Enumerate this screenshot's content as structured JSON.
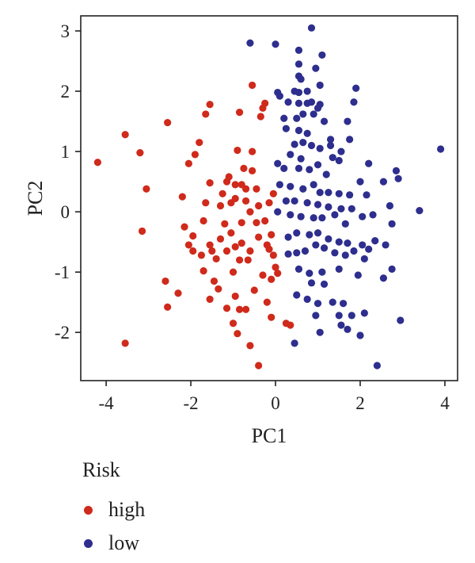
{
  "chart_data": {
    "type": "scatter",
    "xlabel": "PC1",
    "ylabel": "PC2",
    "xlim": [
      -4.6,
      4.3
    ],
    "ylim": [
      -2.8,
      3.25
    ],
    "x_ticks": [
      "-4",
      "-2",
      "0",
      "2",
      "4"
    ],
    "y_ticks": [
      "-2",
      "-1",
      "0",
      "1",
      "2",
      "3"
    ],
    "grid": false,
    "legend": {
      "title": "Risk",
      "placement": "bottom-left"
    },
    "series": [
      {
        "name": "high",
        "color": "#cf2a1b",
        "points": [
          [
            -4.2,
            0.82
          ],
          [
            -3.55,
            1.28
          ],
          [
            -3.2,
            0.98
          ],
          [
            -3.05,
            0.38
          ],
          [
            -3.15,
            -0.32
          ],
          [
            -3.55,
            -2.18
          ],
          [
            -2.55,
            1.48
          ],
          [
            -2.6,
            -1.15
          ],
          [
            -2.55,
            -1.58
          ],
          [
            -2.3,
            -1.35
          ],
          [
            -2.15,
            -0.25
          ],
          [
            -2.2,
            0.25
          ],
          [
            -2.05,
            0.8
          ],
          [
            -1.9,
            0.95
          ],
          [
            -1.95,
            -0.4
          ],
          [
            -2.05,
            -0.55
          ],
          [
            -1.95,
            -0.65
          ],
          [
            -1.75,
            -0.72
          ],
          [
            -1.8,
            1.15
          ],
          [
            -1.65,
            1.62
          ],
          [
            -1.55,
            1.78
          ],
          [
            -1.55,
            0.48
          ],
          [
            -1.65,
            0.15
          ],
          [
            -1.7,
            -0.15
          ],
          [
            -1.55,
            -0.55
          ],
          [
            -1.5,
            -0.65
          ],
          [
            -1.7,
            -0.98
          ],
          [
            -1.45,
            -1.15
          ],
          [
            -1.55,
            -1.45
          ],
          [
            -1.35,
            -1.28
          ],
          [
            -1.2,
            -0.2
          ],
          [
            -1.3,
            0.1
          ],
          [
            -1.25,
            0.3
          ],
          [
            -1.4,
            -0.78
          ],
          [
            -1.15,
            -0.65
          ],
          [
            -1.15,
            0.5
          ],
          [
            -1.05,
            0.15
          ],
          [
            -0.95,
            0.45
          ],
          [
            -0.95,
            0.22
          ],
          [
            -1.05,
            -0.35
          ],
          [
            -1.0,
            -1.0
          ],
          [
            -1.15,
            -1.6
          ],
          [
            -1.0,
            -1.85
          ],
          [
            -0.9,
            -2.02
          ],
          [
            -0.85,
            -1.62
          ],
          [
            -0.95,
            -1.4
          ],
          [
            -0.8,
            -0.52
          ],
          [
            -0.85,
            -0.8
          ],
          [
            -0.9,
            1.02
          ],
          [
            -0.75,
            0.72
          ],
          [
            -0.85,
            1.65
          ],
          [
            -0.8,
            -0.18
          ],
          [
            -0.7,
            0.38
          ],
          [
            -0.6,
            0.0
          ],
          [
            -0.55,
            0.68
          ],
          [
            -0.55,
            1.0
          ],
          [
            -0.6,
            -0.65
          ],
          [
            -0.65,
            -0.8
          ],
          [
            -0.5,
            -1.3
          ],
          [
            -0.7,
            -1.62
          ],
          [
            -0.6,
            -2.22
          ],
          [
            -0.4,
            -2.55
          ],
          [
            -0.45,
            0.38
          ],
          [
            -0.4,
            -0.42
          ],
          [
            -0.35,
            1.58
          ],
          [
            -0.4,
            0.1
          ],
          [
            -0.3,
            -1.05
          ],
          [
            -0.2,
            -0.55
          ],
          [
            -0.15,
            -0.62
          ],
          [
            -0.25,
            -0.15
          ],
          [
            -0.1,
            -0.38
          ],
          [
            -0.05,
            -0.72
          ],
          [
            -0.15,
            0.15
          ],
          [
            -0.05,
            0.3
          ],
          [
            -0.1,
            -1.12
          ],
          [
            0.0,
            -0.92
          ],
          [
            -0.2,
            -1.5
          ],
          [
            -0.1,
            -1.75
          ],
          [
            0.25,
            -1.85
          ],
          [
            0.35,
            -1.88
          ],
          [
            0.05,
            -1.02
          ],
          [
            -0.3,
            1.72
          ],
          [
            -0.25,
            1.8
          ],
          [
            -0.55,
            2.1
          ],
          [
            -1.1,
            0.58
          ],
          [
            -1.3,
            -0.45
          ],
          [
            -0.7,
            0.18
          ],
          [
            -0.45,
            -0.18
          ],
          [
            -0.8,
            0.45
          ],
          [
            -0.95,
            -0.58
          ]
        ]
      },
      {
        "name": "low",
        "color": "#2e2e8e",
        "points": [
          [
            -0.6,
            2.8
          ],
          [
            0.0,
            2.78
          ],
          [
            0.85,
            3.05
          ],
          [
            0.55,
            2.45
          ],
          [
            0.55,
            2.25
          ],
          [
            0.6,
            2.2
          ],
          [
            0.75,
            2.0
          ],
          [
            0.55,
            1.98
          ],
          [
            1.05,
            2.1
          ],
          [
            1.1,
            2.6
          ],
          [
            0.55,
            2.68
          ],
          [
            0.95,
            2.38
          ],
          [
            0.45,
            2.0
          ],
          [
            0.05,
            1.98
          ],
          [
            0.1,
            1.92
          ],
          [
            0.3,
            1.82
          ],
          [
            0.55,
            1.8
          ],
          [
            0.75,
            1.8
          ],
          [
            0.85,
            1.82
          ],
          [
            1.05,
            1.78
          ],
          [
            0.2,
            1.55
          ],
          [
            0.5,
            1.55
          ],
          [
            0.65,
            1.62
          ],
          [
            0.9,
            1.62
          ],
          [
            1.0,
            1.72
          ],
          [
            0.25,
            1.38
          ],
          [
            0.55,
            1.35
          ],
          [
            0.75,
            1.3
          ],
          [
            1.15,
            1.5
          ],
          [
            0.45,
            1.12
          ],
          [
            0.65,
            1.15
          ],
          [
            0.85,
            1.1
          ],
          [
            1.05,
            1.05
          ],
          [
            1.3,
            1.1
          ],
          [
            1.35,
            0.9
          ],
          [
            0.35,
            0.95
          ],
          [
            0.6,
            0.88
          ],
          [
            1.5,
            0.85
          ],
          [
            0.05,
            0.8
          ],
          [
            0.2,
            0.72
          ],
          [
            0.55,
            0.72
          ],
          [
            0.8,
            0.7
          ],
          [
            1.0,
            0.78
          ],
          [
            1.2,
            0.62
          ],
          [
            0.1,
            0.45
          ],
          [
            0.35,
            0.42
          ],
          [
            0.65,
            0.38
          ],
          [
            0.9,
            0.45
          ],
          [
            1.05,
            0.32
          ],
          [
            1.25,
            0.32
          ],
          [
            1.5,
            0.3
          ],
          [
            1.75,
            0.28
          ],
          [
            2.0,
            0.5
          ],
          [
            2.15,
            0.28
          ],
          [
            0.25,
            0.18
          ],
          [
            0.45,
            0.18
          ],
          [
            0.75,
            0.15
          ],
          [
            1.0,
            0.12
          ],
          [
            1.25,
            0.08
          ],
          [
            1.55,
            0.05
          ],
          [
            1.8,
            0.05
          ],
          [
            0.05,
            0.0
          ],
          [
            0.35,
            -0.05
          ],
          [
            0.6,
            -0.08
          ],
          [
            0.9,
            -0.1
          ],
          [
            1.1,
            -0.1
          ],
          [
            1.4,
            -0.05
          ],
          [
            1.65,
            -0.2
          ],
          [
            2.05,
            -0.08
          ],
          [
            2.3,
            -0.05
          ],
          [
            0.3,
            -0.42
          ],
          [
            0.5,
            -0.35
          ],
          [
            0.8,
            -0.38
          ],
          [
            1.0,
            -0.35
          ],
          [
            1.25,
            -0.45
          ],
          [
            1.5,
            -0.5
          ],
          [
            1.7,
            -0.52
          ],
          [
            2.05,
            -0.55
          ],
          [
            2.2,
            -0.62
          ],
          [
            0.3,
            -0.7
          ],
          [
            0.5,
            -0.68
          ],
          [
            0.7,
            -0.65
          ],
          [
            0.95,
            -0.55
          ],
          [
            1.15,
            -0.6
          ],
          [
            1.4,
            -0.68
          ],
          [
            1.65,
            -0.72
          ],
          [
            1.85,
            -0.65
          ],
          [
            2.1,
            -0.78
          ],
          [
            0.55,
            -0.95
          ],
          [
            0.8,
            -1.02
          ],
          [
            1.1,
            -1.0
          ],
          [
            1.5,
            -0.95
          ],
          [
            1.95,
            -1.05
          ],
          [
            0.85,
            -1.18
          ],
          [
            1.15,
            -1.2
          ],
          [
            0.5,
            -1.38
          ],
          [
            0.75,
            -1.45
          ],
          [
            1.0,
            -1.52
          ],
          [
            1.35,
            -1.5
          ],
          [
            1.6,
            -1.52
          ],
          [
            0.95,
            -1.72
          ],
          [
            1.5,
            -1.72
          ],
          [
            1.8,
            -1.72
          ],
          [
            2.1,
            -1.68
          ],
          [
            1.05,
            -2.0
          ],
          [
            1.55,
            -1.88
          ],
          [
            1.7,
            -1.95
          ],
          [
            2.0,
            -2.05
          ],
          [
            0.45,
            -2.18
          ],
          [
            2.6,
            -0.55
          ],
          [
            2.55,
            -1.1
          ],
          [
            2.75,
            -0.95
          ],
          [
            2.95,
            -1.8
          ],
          [
            2.7,
            0.1
          ],
          [
            2.75,
            -0.2
          ],
          [
            2.85,
            0.68
          ],
          [
            2.9,
            0.55
          ],
          [
            3.4,
            0.02
          ],
          [
            3.9,
            1.04
          ],
          [
            2.55,
            0.5
          ],
          [
            1.7,
            1.5
          ],
          [
            1.85,
            1.82
          ],
          [
            1.9,
            2.05
          ],
          [
            1.3,
            1.2
          ],
          [
            1.75,
            1.2
          ],
          [
            1.55,
            1.0
          ],
          [
            2.2,
            0.8
          ],
          [
            2.35,
            -0.48
          ],
          [
            2.4,
            -2.55
          ]
        ]
      }
    ]
  }
}
